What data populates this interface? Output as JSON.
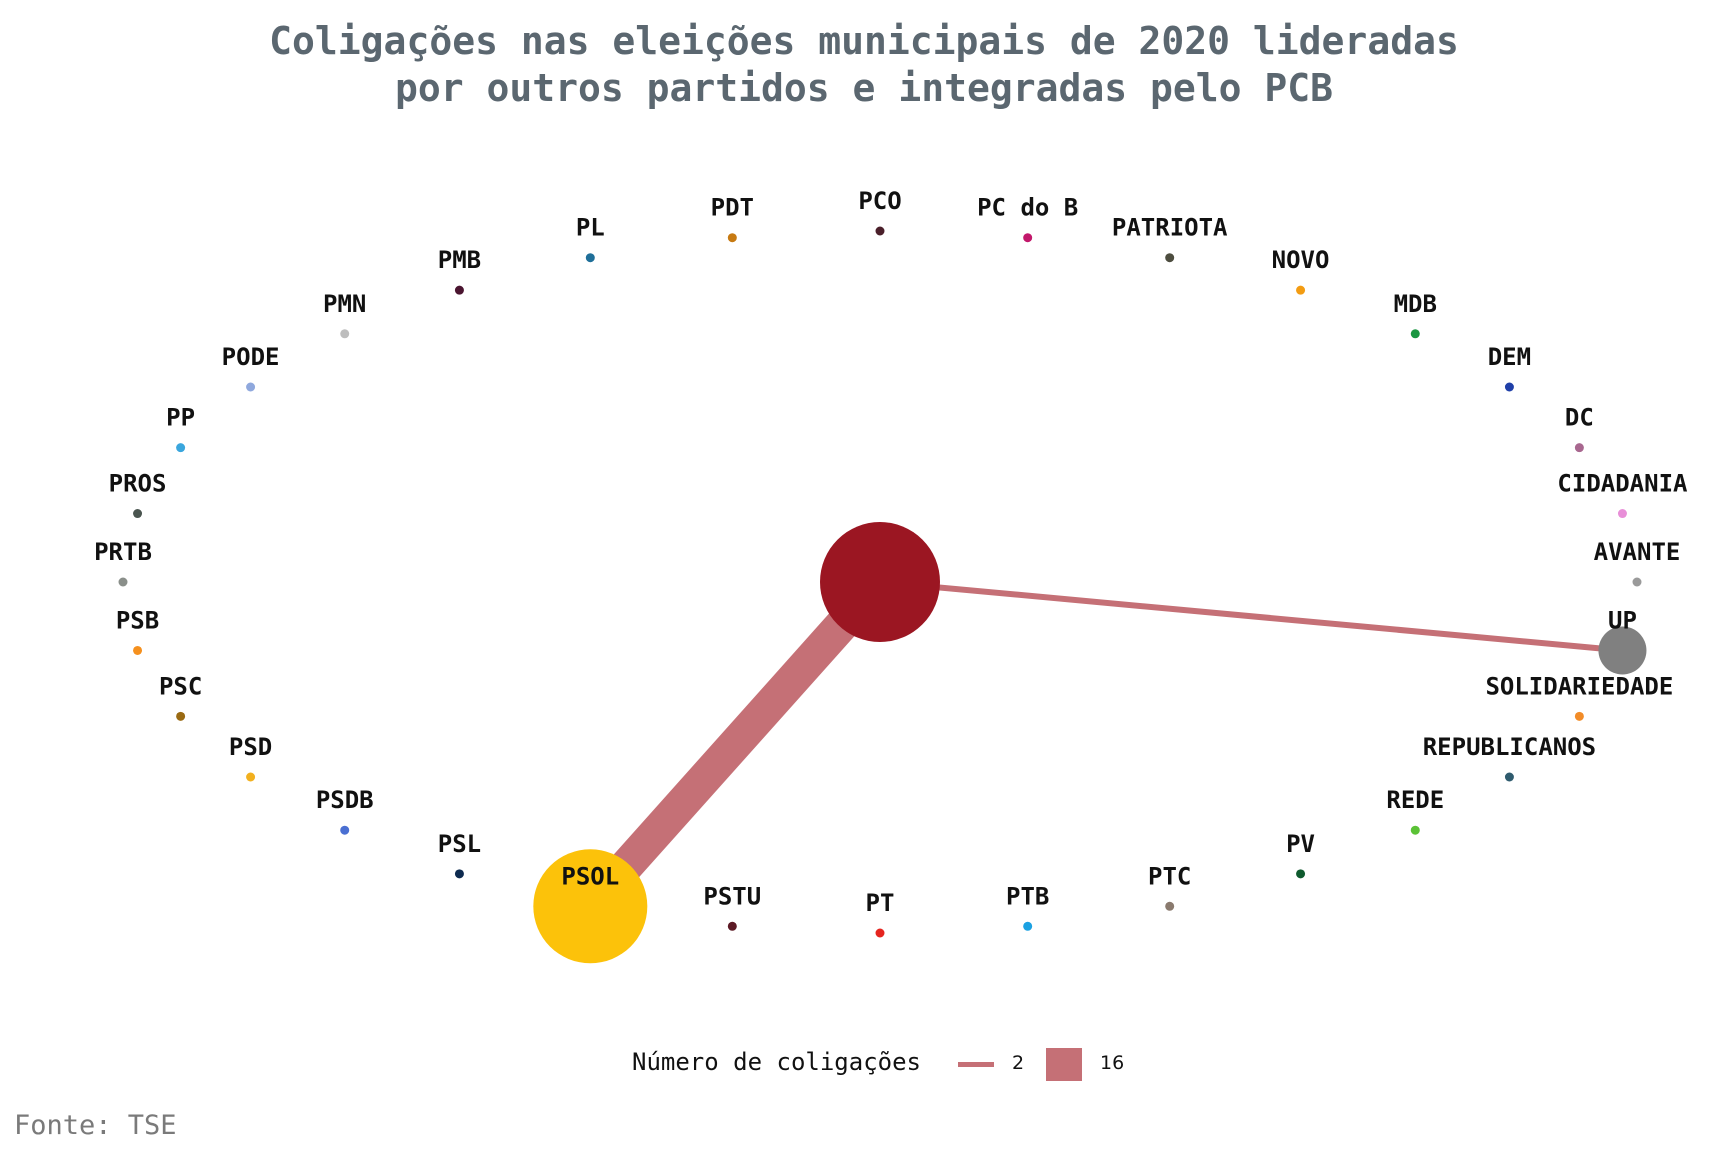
{
  "title": {
    "line1": "Coligações nas eleições municipais de 2020 lideradas",
    "line2": "por outros partidos e integradas pelo PCB"
  },
  "chart_data": {
    "type": "network",
    "layout": "circle",
    "center_node": {
      "name": "PCB",
      "color": "#9b1622"
    },
    "nodes": [
      {
        "name": "PCO",
        "color": "#4a1f2a",
        "size": "small"
      },
      {
        "name": "PC do B",
        "color": "#c2186b",
        "size": "small"
      },
      {
        "name": "PATRIOTA",
        "color": "#4d4d3f",
        "size": "small"
      },
      {
        "name": "NOVO",
        "color": "#f39c12",
        "size": "small"
      },
      {
        "name": "MDB",
        "color": "#1a9641",
        "size": "small"
      },
      {
        "name": "DEM",
        "color": "#1f3fa8",
        "size": "small"
      },
      {
        "name": "DC",
        "color": "#a8678f",
        "size": "small"
      },
      {
        "name": "CIDADANIA",
        "color": "#e88fd8",
        "size": "small"
      },
      {
        "name": "AVANTE",
        "color": "#9a9a9a",
        "size": "small"
      },
      {
        "name": "UP",
        "color": "#808080",
        "size": "medium"
      },
      {
        "name": "SOLIDARIEDADE",
        "color": "#f28c28",
        "size": "small"
      },
      {
        "name": "REPUBLICANOS",
        "color": "#2f5b6e",
        "size": "small"
      },
      {
        "name": "REDE",
        "color": "#5bc236",
        "size": "small"
      },
      {
        "name": "PV",
        "color": "#0e5a2e",
        "size": "small"
      },
      {
        "name": "PTC",
        "color": "#8a7a6e",
        "size": "small"
      },
      {
        "name": "PTB",
        "color": "#1ba1e2",
        "size": "small"
      },
      {
        "name": "PT",
        "color": "#e5251f",
        "size": "small"
      },
      {
        "name": "PSTU",
        "color": "#5c1a25",
        "size": "small"
      },
      {
        "name": "PSOL",
        "color": "#fcc20a",
        "size": "large"
      },
      {
        "name": "PSL",
        "color": "#0d2a4f",
        "size": "small"
      },
      {
        "name": "PSDB",
        "color": "#4a6fd2",
        "size": "small"
      },
      {
        "name": "PSD",
        "color": "#f2b01e",
        "size": "small"
      },
      {
        "name": "PSC",
        "color": "#9a6a12",
        "size": "small"
      },
      {
        "name": "PSB",
        "color": "#f5901e",
        "size": "small"
      },
      {
        "name": "PRTB",
        "color": "#8a8f8a",
        "size": "small"
      },
      {
        "name": "PROS",
        "color": "#4a5550",
        "size": "small"
      },
      {
        "name": "PP",
        "color": "#3aa6dd",
        "size": "small"
      },
      {
        "name": "PODE",
        "color": "#8fa8dd",
        "size": "small"
      },
      {
        "name": "PMN",
        "color": "#bdbdbd",
        "size": "small"
      },
      {
        "name": "PMB",
        "color": "#4a1530",
        "size": "small"
      },
      {
        "name": "PL",
        "color": "#1f6f99",
        "size": "small"
      },
      {
        "name": "PDT",
        "color": "#c77a12",
        "size": "small"
      }
    ],
    "edges": [
      {
        "from": "PCB",
        "to": "PSOL",
        "value": 16
      },
      {
        "from": "PCB",
        "to": "UP",
        "value": 2
      }
    ],
    "edge_color": "#c57076",
    "legend": {
      "title": "Número de coligações",
      "small_label": "2",
      "large_label": "16"
    }
  },
  "source": "Fonte: TSE"
}
